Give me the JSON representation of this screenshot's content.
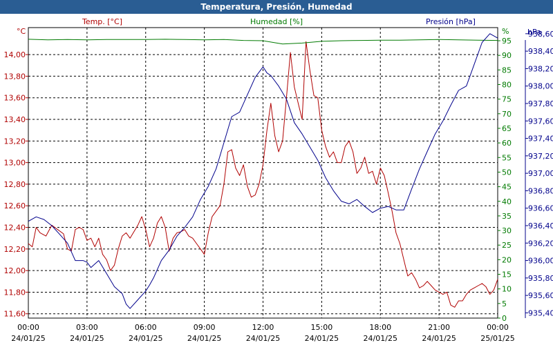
{
  "window": {
    "title": "Temperatura, Presión, Humedad"
  },
  "colors": {
    "temperature": "#b00000",
    "humidity": "#007a00",
    "pressure": "#00008b",
    "title_bar": "#2a5d93"
  },
  "chart_data": {
    "type": "line",
    "title": "Temperatura, Presión, Humedad",
    "grid": true,
    "x_ticks": [
      {
        "time": "00:00",
        "date": "24/01/25",
        "hour": 0
      },
      {
        "time": "03:00",
        "date": "24/01/25",
        "hour": 3
      },
      {
        "time": "06:00",
        "date": "24/01/25",
        "hour": 6
      },
      {
        "time": "09:00",
        "date": "24/01/25",
        "hour": 9
      },
      {
        "time": "12:00",
        "date": "24/01/25",
        "hour": 12
      },
      {
        "time": "15:00",
        "date": "24/01/25",
        "hour": 15
      },
      {
        "time": "18:00",
        "date": "24/01/25",
        "hour": 18
      },
      {
        "time": "21:00",
        "date": "24/01/25",
        "hour": 21
      },
      {
        "time": "00:00",
        "date": "25/01/25",
        "hour": 24
      }
    ],
    "x_range": [
      0,
      24
    ],
    "axes": {
      "temperature": {
        "label": "Temp. [°C]",
        "unit": "°C",
        "side": "left",
        "color": "#b00000",
        "range": [
          11.56,
          14.25
        ],
        "ticks": [
          11.6,
          11.8,
          12.0,
          12.2,
          12.4,
          12.6,
          12.8,
          13.0,
          13.2,
          13.4,
          13.6,
          13.8,
          14.0
        ],
        "tick_labels": [
          "11,60",
          "11,80",
          "12,00",
          "12,20",
          "12,40",
          "12,60",
          "12,80",
          "13,00",
          "13,20",
          "13,40",
          "13,60",
          "13,80",
          "14,00"
        ]
      },
      "humidity": {
        "label": "Humedad [%]",
        "unit": "%",
        "side": "right",
        "color": "#007a00",
        "range": [
          0,
          99.5
        ],
        "ticks": [
          0,
          5,
          10,
          15,
          20,
          25,
          30,
          35,
          40,
          45,
          50,
          55,
          60,
          65,
          70,
          75,
          80,
          85,
          90,
          95
        ],
        "tick_labels": [
          "0",
          "5",
          "10",
          "15",
          "20",
          "25",
          "30",
          "35",
          "40",
          "45",
          "50",
          "55",
          "60",
          "65",
          "70",
          "75",
          "80",
          "85",
          "90",
          "95"
        ]
      },
      "pressure": {
        "label": "Presión [hPa]",
        "unit": "hPa",
        "side": "right",
        "color": "#00008b",
        "range": [
          935.34,
          938.67
        ],
        "ticks": [
          935.4,
          935.6,
          935.8,
          936.0,
          936.2,
          936.4,
          936.6,
          936.8,
          937.0,
          937.2,
          937.4,
          937.6,
          937.8,
          938.0,
          938.2,
          938.4,
          938.6
        ],
        "tick_labels": [
          "935,40",
          "935,60",
          "935,80",
          "936,00",
          "936,20",
          "936,40",
          "936,60",
          "936,80",
          "937,00",
          "937,20",
          "937,40",
          "937,60",
          "937,80",
          "938,00",
          "938,20",
          "938,40",
          "938,60"
        ]
      }
    },
    "series": [
      {
        "name": "Temp. [°C]",
        "axis": "temperature",
        "color": "#b00000",
        "points": [
          [
            0,
            12.25
          ],
          [
            0.2,
            12.22
          ],
          [
            0.4,
            12.4
          ],
          [
            0.6,
            12.35
          ],
          [
            0.9,
            12.32
          ],
          [
            1.2,
            12.42
          ],
          [
            1.5,
            12.38
          ],
          [
            1.8,
            12.34
          ],
          [
            2.0,
            12.2
          ],
          [
            2.2,
            12.18
          ],
          [
            2.4,
            12.38
          ],
          [
            2.6,
            12.4
          ],
          [
            2.8,
            12.38
          ],
          [
            3.0,
            12.28
          ],
          [
            3.2,
            12.3
          ],
          [
            3.4,
            12.22
          ],
          [
            3.6,
            12.3
          ],
          [
            3.8,
            12.15
          ],
          [
            4.0,
            12.1
          ],
          [
            4.2,
            12.0
          ],
          [
            4.4,
            12.05
          ],
          [
            4.6,
            12.2
          ],
          [
            4.8,
            12.32
          ],
          [
            5.0,
            12.35
          ],
          [
            5.2,
            12.3
          ],
          [
            5.4,
            12.36
          ],
          [
            5.6,
            12.42
          ],
          [
            5.8,
            12.5
          ],
          [
            6.0,
            12.38
          ],
          [
            6.2,
            12.22
          ],
          [
            6.4,
            12.3
          ],
          [
            6.6,
            12.44
          ],
          [
            6.8,
            12.5
          ],
          [
            7.0,
            12.4
          ],
          [
            7.2,
            12.18
          ],
          [
            7.4,
            12.3
          ],
          [
            7.6,
            12.35
          ],
          [
            7.8,
            12.36
          ],
          [
            8.0,
            12.38
          ],
          [
            8.2,
            12.32
          ],
          [
            8.4,
            12.3
          ],
          [
            8.6,
            12.25
          ],
          [
            8.8,
            12.2
          ],
          [
            9.0,
            12.15
          ],
          [
            9.2,
            12.35
          ],
          [
            9.4,
            12.5
          ],
          [
            9.6,
            12.55
          ],
          [
            9.8,
            12.6
          ],
          [
            10.0,
            12.8
          ],
          [
            10.2,
            13.1
          ],
          [
            10.4,
            13.12
          ],
          [
            10.6,
            12.95
          ],
          [
            10.8,
            12.88
          ],
          [
            11.0,
            12.98
          ],
          [
            11.2,
            12.78
          ],
          [
            11.4,
            12.68
          ],
          [
            11.6,
            12.7
          ],
          [
            11.8,
            12.8
          ],
          [
            12.0,
            12.98
          ],
          [
            12.2,
            13.3
          ],
          [
            12.4,
            13.55
          ],
          [
            12.6,
            13.25
          ],
          [
            12.8,
            13.1
          ],
          [
            13.0,
            13.2
          ],
          [
            13.2,
            13.6
          ],
          [
            13.4,
            14.02
          ],
          [
            13.6,
            13.7
          ],
          [
            13.8,
            13.55
          ],
          [
            14.0,
            13.4
          ],
          [
            14.2,
            14.12
          ],
          [
            14.4,
            13.85
          ],
          [
            14.6,
            13.62
          ],
          [
            14.8,
            13.6
          ],
          [
            15.0,
            13.3
          ],
          [
            15.2,
            13.15
          ],
          [
            15.4,
            13.05
          ],
          [
            15.6,
            13.1
          ],
          [
            15.8,
            13.0
          ],
          [
            16.0,
            13.0
          ],
          [
            16.2,
            13.15
          ],
          [
            16.4,
            13.2
          ],
          [
            16.6,
            13.1
          ],
          [
            16.8,
            12.9
          ],
          [
            17.0,
            12.95
          ],
          [
            17.2,
            13.05
          ],
          [
            17.4,
            12.9
          ],
          [
            17.6,
            12.92
          ],
          [
            17.8,
            12.8
          ],
          [
            18.0,
            12.95
          ],
          [
            18.2,
            12.88
          ],
          [
            18.4,
            12.72
          ],
          [
            18.6,
            12.55
          ],
          [
            18.8,
            12.35
          ],
          [
            19.0,
            12.25
          ],
          [
            19.2,
            12.1
          ],
          [
            19.4,
            11.95
          ],
          [
            19.6,
            11.98
          ],
          [
            19.8,
            11.92
          ],
          [
            20.0,
            11.84
          ],
          [
            20.2,
            11.86
          ],
          [
            20.4,
            11.9
          ],
          [
            20.6,
            11.86
          ],
          [
            20.8,
            11.82
          ],
          [
            21.0,
            11.8
          ],
          [
            21.2,
            11.78
          ],
          [
            21.4,
            11.8
          ],
          [
            21.6,
            11.68
          ],
          [
            21.8,
            11.66
          ],
          [
            22.0,
            11.72
          ],
          [
            22.2,
            11.72
          ],
          [
            22.4,
            11.78
          ],
          [
            22.6,
            11.82
          ],
          [
            22.8,
            11.84
          ],
          [
            23.0,
            11.86
          ],
          [
            23.2,
            11.88
          ],
          [
            23.4,
            11.85
          ],
          [
            23.6,
            11.78
          ],
          [
            23.8,
            11.82
          ],
          [
            24.0,
            11.92
          ]
        ]
      },
      {
        "name": "Humedad [%]",
        "axis": "humidity",
        "color": "#007a00",
        "points": [
          [
            0,
            95.5
          ],
          [
            1,
            95.3
          ],
          [
            2,
            95.4
          ],
          [
            3,
            95.3
          ],
          [
            4,
            95.4
          ],
          [
            5,
            95.4
          ],
          [
            6,
            95.4
          ],
          [
            7,
            95.5
          ],
          [
            8,
            95.4
          ],
          [
            9,
            95.3
          ],
          [
            10,
            95.4
          ],
          [
            11,
            95.1
          ],
          [
            12,
            95.0
          ],
          [
            13,
            93.9
          ],
          [
            14,
            94.2
          ],
          [
            15,
            94.8
          ],
          [
            16,
            95.0
          ],
          [
            17,
            95.1
          ],
          [
            18,
            95.2
          ],
          [
            19,
            95.2
          ],
          [
            20,
            95.3
          ],
          [
            21,
            95.4
          ],
          [
            22,
            95.3
          ],
          [
            23,
            95.2
          ],
          [
            24,
            95.1
          ]
        ]
      },
      {
        "name": "Presión [hPa]",
        "axis": "pressure",
        "color": "#00008b",
        "points": [
          [
            0,
            936.45
          ],
          [
            0.4,
            936.5
          ],
          [
            0.8,
            936.47
          ],
          [
            1.2,
            936.4
          ],
          [
            1.6,
            936.3
          ],
          [
            2.0,
            936.2
          ],
          [
            2.4,
            936.0
          ],
          [
            2.8,
            936.0
          ],
          [
            3.0,
            935.98
          ],
          [
            3.2,
            935.92
          ],
          [
            3.6,
            936.0
          ],
          [
            4.0,
            935.85
          ],
          [
            4.4,
            935.7
          ],
          [
            4.8,
            935.62
          ],
          [
            5.0,
            935.5
          ],
          [
            5.2,
            935.45
          ],
          [
            5.6,
            935.55
          ],
          [
            6.0,
            935.65
          ],
          [
            6.2,
            935.72
          ],
          [
            6.4,
            935.8
          ],
          [
            6.8,
            936.0
          ],
          [
            7.2,
            936.12
          ],
          [
            7.6,
            936.28
          ],
          [
            8.0,
            936.38
          ],
          [
            8.4,
            936.5
          ],
          [
            8.8,
            936.7
          ],
          [
            9.2,
            936.85
          ],
          [
            9.6,
            937.05
          ],
          [
            10.0,
            937.35
          ],
          [
            10.4,
            937.65
          ],
          [
            10.8,
            937.7
          ],
          [
            11.2,
            937.9
          ],
          [
            11.6,
            938.1
          ],
          [
            12.0,
            938.22
          ],
          [
            12.2,
            938.15
          ],
          [
            12.4,
            938.12
          ],
          [
            12.8,
            938.0
          ],
          [
            13.2,
            937.85
          ],
          [
            13.6,
            937.58
          ],
          [
            14.0,
            937.45
          ],
          [
            14.4,
            937.3
          ],
          [
            14.8,
            937.15
          ],
          [
            15.2,
            936.95
          ],
          [
            15.6,
            936.8
          ],
          [
            16.0,
            936.68
          ],
          [
            16.4,
            936.65
          ],
          [
            16.8,
            936.7
          ],
          [
            17.2,
            936.62
          ],
          [
            17.6,
            936.55
          ],
          [
            18.0,
            936.6
          ],
          [
            18.4,
            936.62
          ],
          [
            18.8,
            936.58
          ],
          [
            19.2,
            936.58
          ],
          [
            19.6,
            936.82
          ],
          [
            20.0,
            937.05
          ],
          [
            20.4,
            937.25
          ],
          [
            20.8,
            937.45
          ],
          [
            21.2,
            937.6
          ],
          [
            21.6,
            937.78
          ],
          [
            22.0,
            937.95
          ],
          [
            22.4,
            938.0
          ],
          [
            22.8,
            938.25
          ],
          [
            23.2,
            938.5
          ],
          [
            23.6,
            938.6
          ],
          [
            24.0,
            938.55
          ]
        ]
      }
    ]
  }
}
